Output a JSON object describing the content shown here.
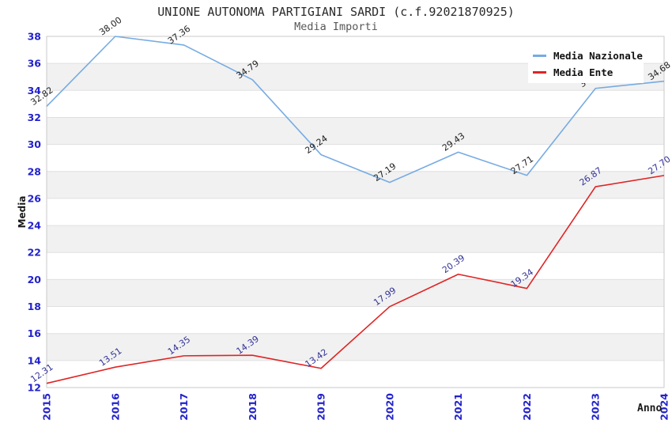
{
  "header": {
    "title": "UNIONE AUTONOMA PARTIGIANI SARDI (c.f.92021870925)",
    "subtitle": "Media Importi"
  },
  "chart_data": {
    "type": "line",
    "x": [
      "2015",
      "2016",
      "2017",
      "2018",
      "2019",
      "2020",
      "2021",
      "2022",
      "2023",
      "2024"
    ],
    "series": [
      {
        "name": "Media Nazionale",
        "color": "#76abe3",
        "label_color": "#222222",
        "values": [
          32.82,
          38.0,
          37.36,
          34.79,
          29.24,
          27.19,
          29.43,
          27.71,
          34.15,
          34.68
        ],
        "labels": [
          "32.82",
          "38.00",
          "37.36",
          "34.79",
          "29.24",
          "27.19",
          "29.43",
          "27.71",
          "34.15",
          "34.68"
        ]
      },
      {
        "name": "Media Ente",
        "color": "#e02424",
        "label_color": "#333399",
        "values": [
          12.31,
          13.51,
          14.35,
          14.39,
          13.42,
          17.99,
          20.39,
          19.34,
          26.87,
          27.7
        ],
        "labels": [
          "12.31",
          "13.51",
          "14.35",
          "14.39",
          "13.42",
          "17.99",
          "20.39",
          "19.34",
          "26.87",
          "27.70"
        ]
      }
    ],
    "xlabel": "Anno",
    "ylabel": "Media",
    "ylim": [
      12,
      38
    ],
    "ytick_step": 2,
    "legend_position": "top-right",
    "grid": "horizontal-bands"
  },
  "colors": {
    "tick_label": "#2222cc",
    "band": "#f1f1f1",
    "gridline": "#e0e0e0",
    "plot_border": "#c9c9c9",
    "background": "#ffffff"
  }
}
